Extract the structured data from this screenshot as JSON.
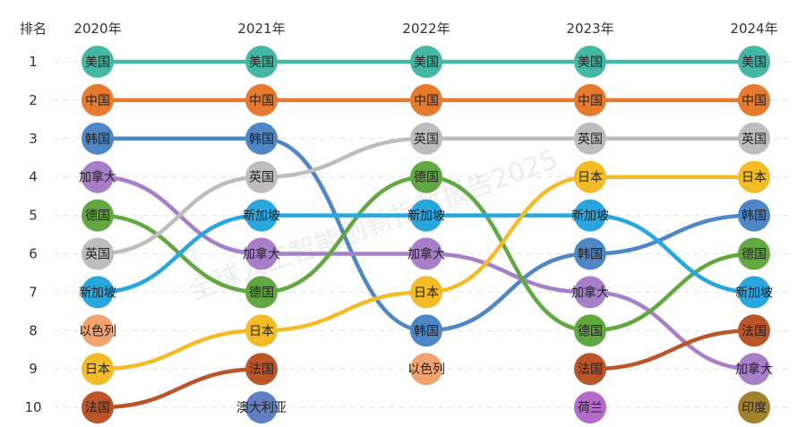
{
  "chart_data": {
    "type": "bump",
    "rank_label": "排名",
    "years": [
      "2020年",
      "2021年",
      "2022年",
      "2023年",
      "2024年"
    ],
    "ranks": [
      1,
      2,
      3,
      4,
      5,
      6,
      7,
      8,
      9,
      10
    ],
    "watermark": "全球人工智能创新指数报告2025",
    "rankings": [
      [
        "美国",
        "中国",
        "韩国",
        "加拿大",
        "德国",
        "英国",
        "新加坡",
        "以色列",
        "日本",
        "法国"
      ],
      [
        "美国",
        "中国",
        "韩国",
        "英国",
        "新加坡",
        "加拿大",
        "德国",
        "日本",
        "法国",
        "澳大利亚"
      ],
      [
        "美国",
        "中国",
        "英国",
        "德国",
        "新加坡",
        "加拿大",
        "日本",
        "韩国",
        "以色列",
        ""
      ],
      [
        "美国",
        "中国",
        "英国",
        "日本",
        "新加坡",
        "韩国",
        "加拿大",
        "德国",
        "法国",
        "荷兰"
      ],
      [
        "美国",
        "中国",
        "英国",
        "日本",
        "韩国",
        "德国",
        "新加坡",
        "法国",
        "加拿大",
        "印度"
      ]
    ],
    "colors": {
      "美国": "#43b8a4",
      "中国": "#e67a2f",
      "韩国": "#4f86c6",
      "加拿大": "#a77fc9",
      "德国": "#62a840",
      "英国": "#bdbdbd",
      "新加坡": "#28a6dd",
      "以色列": "#f0a26f",
      "日本": "#f3bc27",
      "法国": "#bb5429",
      "澳大利亚": "#5e7fc4",
      "荷兰": "#b46ac9",
      "印度": "#a3802c"
    }
  }
}
